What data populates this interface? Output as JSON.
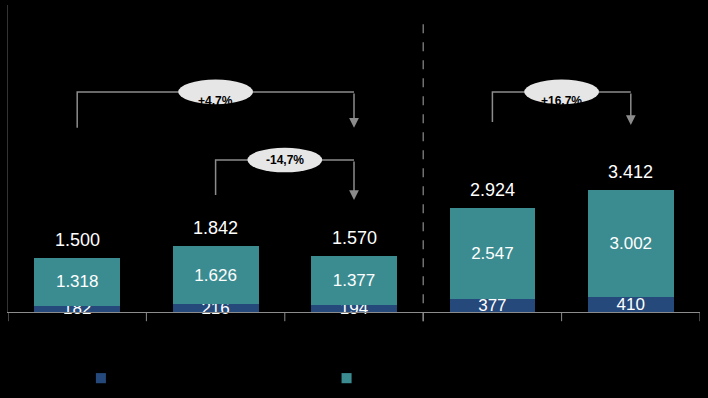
{
  "chart_data": {
    "type": "bar",
    "stacked": true,
    "data_labels": true,
    "tick_labels": false,
    "categories": [
      null,
      null,
      null,
      null,
      null
    ],
    "ylim": [
      0,
      8600
    ],
    "series": [
      {
        "color": "#24497a",
        "values": [
          182,
          216,
          194,
          377,
          410
        ]
      },
      {
        "color": "#3b8c91",
        "values": [
          1318,
          1626,
          1377,
          2547,
          3002
        ],
        "value_labels": [
          "1.318",
          "1.626",
          "1.377",
          "2.547",
          "3.002"
        ]
      }
    ],
    "totals": [
      1500,
      1842,
      1570,
      2924,
      3412
    ],
    "total_labels": [
      "1.500",
      "1.842",
      "1.570",
      "2.924",
      "3.412"
    ],
    "annotations": [
      {
        "text": "+4,7%",
        "from": 0,
        "to": 2
      },
      {
        "text": "-14,7%",
        "from": 1,
        "to": 2
      },
      {
        "text": "+16,7%",
        "from": 3,
        "to": 4
      }
    ]
  }
}
